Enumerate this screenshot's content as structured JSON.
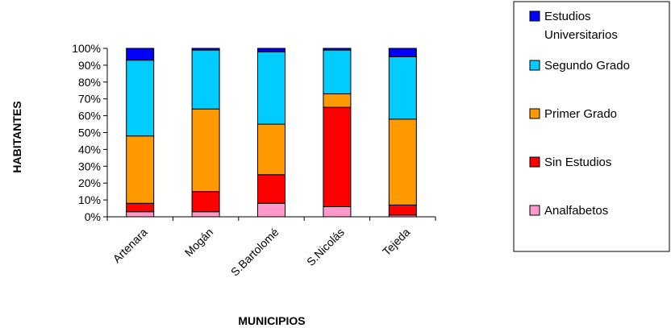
{
  "chart_data": {
    "type": "bar",
    "stacked": true,
    "percent_stacked": true,
    "xlabel": "MUNICIPIOS",
    "ylabel": "HABITANTES",
    "ylim": [
      0,
      100
    ],
    "yticks": [
      "0%",
      "10%",
      "20%",
      "30%",
      "40%",
      "50%",
      "60%",
      "70%",
      "80%",
      "90%",
      "100%"
    ],
    "categories": [
      "Artenara",
      "Mogán",
      "S.Bartolomé",
      "S.Nicolás",
      "Tejeda"
    ],
    "legend_position": "right",
    "series": [
      {
        "name": "Analfabetos",
        "color": "#ff99cc",
        "values": [
          3,
          3,
          8,
          6,
          1
        ]
      },
      {
        "name": "Sin Estudios",
        "color": "#ff0000",
        "values": [
          5,
          12,
          17,
          59,
          6
        ]
      },
      {
        "name": "Primer Grado",
        "color": "#ff9900",
        "values": [
          40,
          49,
          30,
          8,
          51
        ]
      },
      {
        "name": "Segundo Grado",
        "color": "#00ccff",
        "values": [
          45,
          35,
          43,
          26,
          37
        ]
      },
      {
        "name": "Estudios Universitarios",
        "color": "#0000ff",
        "values": [
          7,
          1,
          2,
          1,
          5
        ]
      }
    ],
    "legend_order": [
      {
        "lines": [
          "Estudios",
          "Universitarios"
        ],
        "color": "#0000ff"
      },
      {
        "lines": [
          "Segundo Grado"
        ],
        "color": "#00ccff"
      },
      {
        "lines": [
          "Primer Grado"
        ],
        "color": "#ff9900"
      },
      {
        "lines": [
          "Sin Estudios"
        ],
        "color": "#ff0000"
      },
      {
        "lines": [
          "Analfabetos"
        ],
        "color": "#ff99cc"
      }
    ]
  }
}
